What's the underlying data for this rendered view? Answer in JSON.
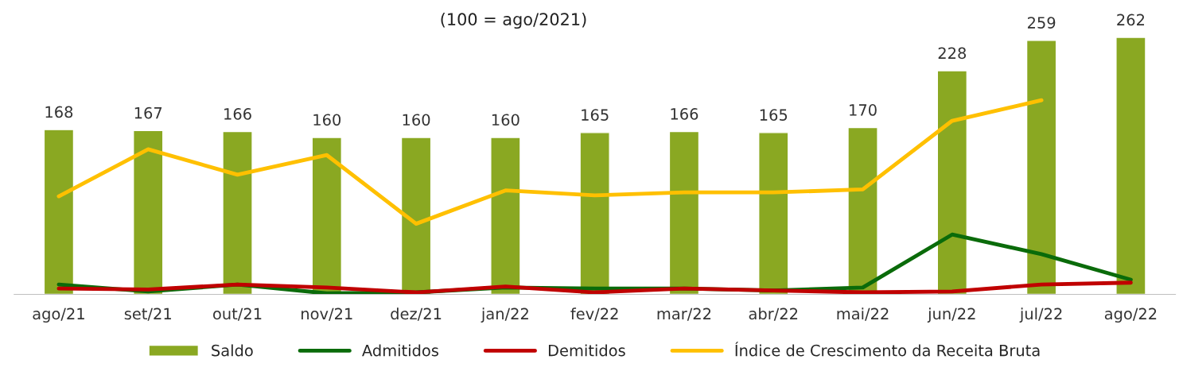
{
  "chart_data": {
    "type": "bar",
    "subtitle": "(100 = ago/2021)",
    "categories": [
      "ago/21",
      "set/21",
      "out/21",
      "nov/21",
      "dez/21",
      "jan/22",
      "fev/22",
      "mar/22",
      "abr/22",
      "mai/22",
      "jun/22",
      "jul/22",
      "ago/22"
    ],
    "series": [
      {
        "name": "Saldo",
        "color": "#8aa822",
        "values": [
          168,
          167,
          166,
          160,
          160,
          160,
          165,
          166,
          165,
          170,
          228,
          259,
          262
        ],
        "value_labels": [
          "168",
          "167",
          "166",
          "160",
          "160",
          "160",
          "165",
          "166",
          "165",
          "170",
          "228",
          "259",
          "262"
        ]
      },
      {
        "name": "Admitidos",
        "type": "line",
        "color": "#0a6b0a",
        "values": [
          10,
          3,
          10,
          1,
          2,
          7,
          6,
          6,
          4,
          7,
          61,
          41,
          15
        ]
      },
      {
        "name": "Demitidos",
        "type": "line",
        "color": "#c00000",
        "values": [
          6,
          5,
          10,
          7,
          2,
          8,
          2,
          6,
          4,
          2,
          3,
          10,
          12
        ]
      },
      {
        "name": "Índice de Crescimento da Receita Bruta",
        "type": "line",
        "color": "#ffc000",
        "values": [
          100,
          148,
          122,
          142,
          72,
          106,
          101,
          104,
          104,
          107,
          177,
          198,
          null
        ]
      }
    ],
    "legend": "bottom",
    "grid": false
  }
}
